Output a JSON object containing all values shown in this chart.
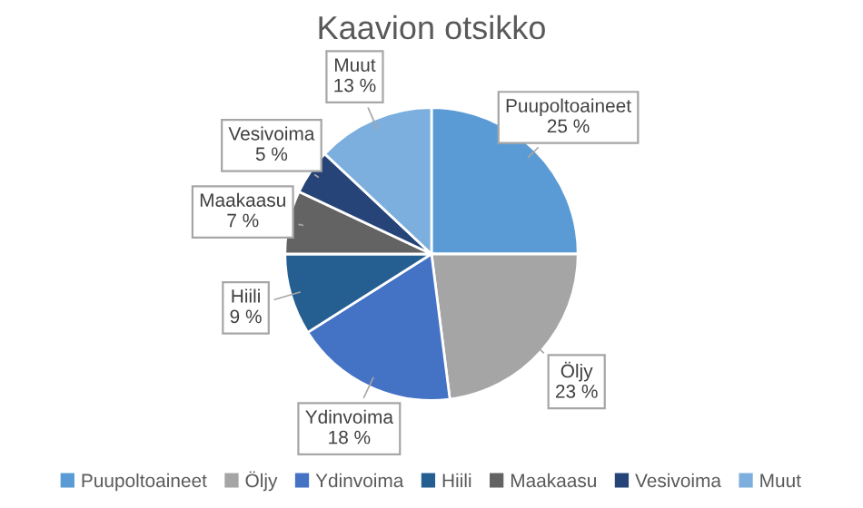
{
  "chart_data": {
    "type": "pie",
    "title": "Kaavion otsikko",
    "categories": [
      "Puupoltoaineet",
      "Öljy",
      "Ydinvoima",
      "Hiili",
      "Maakaasu",
      "Vesivoima",
      "Muut"
    ],
    "values": [
      25,
      23,
      18,
      9,
      7,
      5,
      13
    ],
    "colors": [
      "#5b9bd5",
      "#a5a5a5",
      "#4472c4",
      "#255e91",
      "#636363",
      "#264478",
      "#7cafdd"
    ],
    "value_labels": [
      "25 %",
      "23 %",
      "18 %",
      "9 %",
      "7 %",
      "5 %",
      "13 %"
    ],
    "legend": "bottom"
  }
}
